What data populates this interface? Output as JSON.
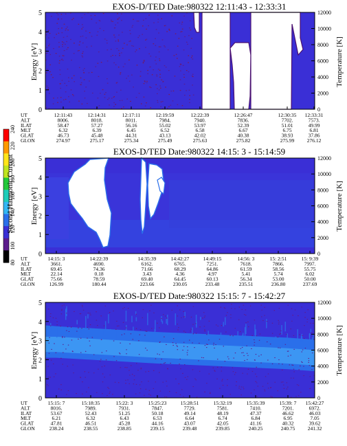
{
  "figure": {
    "colors": {
      "background": "#3a2fd6",
      "plasma_dark": "#4a1070",
      "band_mid": "#2a6fea",
      "band_light": "#3f9ef5",
      "gap": "#ffffff"
    },
    "colorbar": {
      "label": "Second Harmonic Current",
      "ticks": [
        "80",
        "100",
        "120",
        "140",
        "160",
        "180",
        "200",
        "220",
        "240"
      ],
      "colors": [
        "#000000",
        "#5b1c8c",
        "#3a2fd6",
        "#2a6fea",
        "#33b6f3",
        "#1fcdb9",
        "#22c83a",
        "#bfe51f",
        "#ffe51a",
        "#ff9900",
        "#ff0000"
      ]
    }
  },
  "chart_data": [
    {
      "type": "heatmap",
      "title": "EXOS-D/TED   Date:980322  12:11:43 - 12:33:31",
      "ylabel": "Energy [eV]",
      "ylabel_right": "Temperature [K]",
      "ylim": [
        0,
        5
      ],
      "yticks": [
        "0",
        "1",
        "2",
        "3",
        "4",
        "5"
      ],
      "ylim_right": [
        0,
        12000
      ],
      "yticks_right": [
        "0",
        "2000",
        "4000",
        "6000",
        "8000",
        "10000",
        "12000"
      ],
      "ephemeris_labels": [
        "UT",
        "ALT",
        "ILAT",
        "MLT",
        "GLAT",
        "GLON"
      ],
      "ephemeris_columns": [
        {
          "UT": "12:11:43",
          "ALT": "8006.",
          "ILAT": "58.47",
          "MLT": "6.32",
          "GLAT": "46.73",
          "GLON": "274.97"
        },
        {
          "UT": "12:14:31",
          "ALT": "8018.",
          "ILAT": "57.27",
          "MLT": "6.39",
          "GLAT": "45.48",
          "GLON": "275.17"
        },
        {
          "UT": "12:17:11",
          "ALT": "8011.",
          "ILAT": "56.16",
          "MLT": "6.45",
          "GLAT": "44.31",
          "GLON": "275.34"
        },
        {
          "UT": "12:19:59",
          "ALT": "7984.",
          "ILAT": "55.02",
          "MLT": "6.52",
          "GLAT": "43.13",
          "GLON": "275.49"
        },
        {
          "UT": "12:22:39",
          "ALT": "7940.",
          "ILAT": "53.97",
          "MLT": "6.58",
          "GLAT": "42.02",
          "GLON": "275.63"
        },
        {
          "UT": "12:26:47",
          "ALT": "7836.",
          "ILAT": "52.39",
          "MLT": "6.67",
          "GLAT": "40.38",
          "GLON": "275.82"
        },
        {
          "UT": "12:30:35",
          "ALT": "7702.",
          "ILAT": "51.01",
          "MLT": "6.75",
          "GLAT": "38.93",
          "GLON": "275.99"
        },
        {
          "UT": "12:33:31",
          "ALT": "7573.",
          "ILAT": "49.99",
          "MLT": "6.81",
          "GLAT": "37.86",
          "GLON": "276.12"
        }
      ],
      "data_gaps": [
        {
          "from_ut": "12:23:05",
          "to_ut": "12:24:50"
        },
        {
          "from_ut": "12:26:10",
          "to_ut": "12:29:20"
        },
        {
          "from_ut": "12:30:40",
          "to_ut": "12:32:45"
        }
      ]
    },
    {
      "type": "heatmap",
      "title": "EXOS-D/TED   Date:980322  14:15: 3 - 15:14:59",
      "ylabel": "Energy [eV]",
      "ylabel_right": "Temperature [K]",
      "ylim": [
        0,
        5
      ],
      "yticks": [
        "0",
        "1",
        "2",
        "3",
        "4",
        "5"
      ],
      "ylim_right": [
        0,
        12000
      ],
      "yticks_right": [
        "0",
        "2000",
        "4000",
        "6000",
        "8000",
        "10000",
        "12000"
      ],
      "ephemeris_labels": [
        "UT",
        "ALT",
        "ILAT",
        "MLT",
        "GLAT",
        "GLON"
      ],
      "ephemeris_columns": [
        {
          "UT": "14:15: 3",
          "ALT": "3661.",
          "ILAT": "69.45",
          "MLT": "22.14",
          "GLAT": "75.66",
          "GLON": "126.99"
        },
        {
          "UT": "14:22:39",
          "ALT": "4690.",
          "ILAT": "74.36",
          "MLT": "0.18",
          "GLAT": "78.59",
          "GLON": "180.44"
        },
        {
          "UT": "14:35:39",
          "ALT": "6162.",
          "ILAT": "71.66",
          "MLT": "3.43",
          "GLAT": "69.40",
          "GLON": "223.66"
        },
        {
          "UT": "14:42:27",
          "ALT": "6765.",
          "ILAT": "68.29",
          "MLT": "4.36",
          "GLAT": "64.45",
          "GLON": "230.05"
        },
        {
          "UT": "14:49:15",
          "ALT": "7251.",
          "ILAT": "64.86",
          "MLT": "4.97",
          "GLAT": "60.13",
          "GLON": "233.48"
        },
        {
          "UT": "14:56: 3",
          "ALT": "7618.",
          "ILAT": "61.59",
          "MLT": "5.41",
          "GLAT": "56.34",
          "GLON": "235.51"
        },
        {
          "UT": "15: 2:51",
          "ALT": "7866.",
          "ILAT": "58.56",
          "MLT": "5.74",
          "GLAT": "53.00",
          "GLON": "236.80"
        },
        {
          "UT": "15: 9:39",
          "ALT": "7997.",
          "ILAT": "55.75",
          "MLT": "6.02",
          "GLAT": "50.00",
          "GLON": "237.69"
        }
      ],
      "data_gaps": [
        {
          "from_ut": "14:19:30",
          "to_ut": "14:33:00"
        },
        {
          "from_ut": "14:38:00",
          "to_ut": "14:40:30"
        }
      ]
    },
    {
      "type": "heatmap",
      "title": "EXOS-D/TED   Date:980322  15:15: 7 - 15:42:27",
      "ylabel": "Energy [eV]",
      "ylabel_right": "Temperature [K]",
      "ylim": [
        0,
        5
      ],
      "yticks": [
        "0",
        "1",
        "2",
        "3",
        "4",
        "5"
      ],
      "ylim_right": [
        0,
        12000
      ],
      "yticks_right": [
        "0",
        "2000",
        "4000",
        "6000",
        "8000",
        "10000",
        "12000"
      ],
      "ephemeris_labels": [
        "UT",
        "ALT",
        "ILAT",
        "MLT",
        "GLAT",
        "GLON"
      ],
      "ephemeris_columns": [
        {
          "UT": "15:15: 7",
          "ALT": "8016.",
          "ILAT": "53.67",
          "MLT": "6.21",
          "GLAT": "47.81",
          "GLON": "238.24"
        },
        {
          "UT": "15:18:35",
          "ALT": "7989.",
          "ILAT": "52.43",
          "MLT": "6.32",
          "GLAT": "46.51",
          "GLON": "238.55"
        },
        {
          "UT": "15:22: 3",
          "ALT": "7931.",
          "ILAT": "51.25",
          "MLT": "6.43",
          "GLAT": "45.28",
          "GLON": "238.85"
        },
        {
          "UT": "15:25:23",
          "ALT": "7847.",
          "ILAT": "50.18",
          "MLT": "6.53",
          "GLAT": "44.16",
          "GLON": "239.15"
        },
        {
          "UT": "15:28:51",
          "ALT": "7729.",
          "ILAT": "49.14",
          "MLT": "6.64",
          "GLAT": "43.07",
          "GLON": "239.48"
        },
        {
          "UT": "15:32:19",
          "ALT": "7581.",
          "ILAT": "48.19",
          "MLT": "6.74",
          "GLAT": "42.05",
          "GLON": "239.85"
        },
        {
          "UT": "15:35:39",
          "ALT": "7410.",
          "ILAT": "47.37",
          "MLT": "6.84",
          "GLAT": "41.16",
          "GLON": "240.25"
        },
        {
          "UT": "15:39: 7",
          "ALT": "7201.",
          "ILAT": "46.62",
          "MLT": "6.95",
          "GLAT": "40.32",
          "GLON": "240.75"
        },
        {
          "UT": "15:42:27",
          "ALT": "6972.",
          "ILAT": "46.03",
          "MLT": "7.05",
          "GLAT": "39.62",
          "GLON": "241.32"
        }
      ],
      "band": {
        "description_values_eV": [
          {
            "ut": "15:15: 7",
            "low": 2.3,
            "high": 3.6
          },
          {
            "ut": "15:25:23",
            "low": 2.0,
            "high": 3.3
          },
          {
            "ut": "15:35:39",
            "low": 1.7,
            "high": 3.0
          },
          {
            "ut": "15:42:27",
            "low": 1.6,
            "high": 2.9
          }
        ]
      }
    }
  ]
}
